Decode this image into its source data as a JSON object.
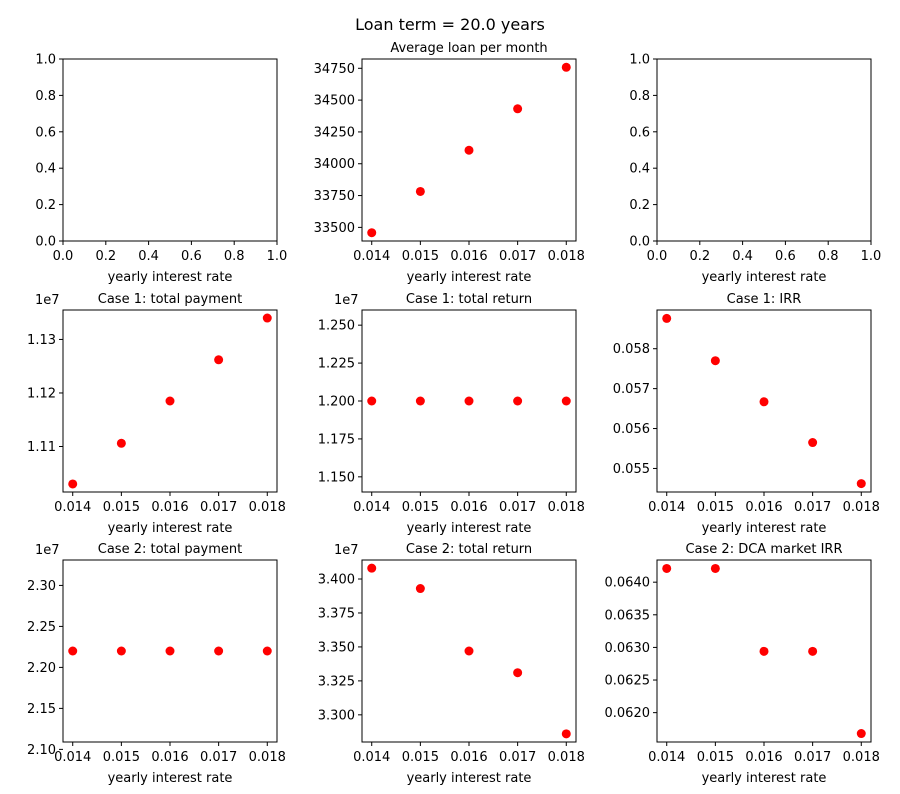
{
  "figure": {
    "suptitle": "Loan term = 20.0 years"
  },
  "marker_color": "#ff0000",
  "chart_data": [
    {
      "type": "scatter",
      "title": "",
      "xlabel": "yearly interest rate",
      "ylabel": "",
      "x": [],
      "y": [],
      "xlim": [
        0,
        1
      ],
      "ylim": [
        0,
        1
      ],
      "xticks": [
        0,
        0.2,
        0.4,
        0.6,
        0.8,
        1.0
      ],
      "xtick_labels": [
        "0.0",
        "0.2",
        "0.4",
        "0.6",
        "0.8",
        "1.0"
      ],
      "yticks": [
        0,
        0.2,
        0.4,
        0.6,
        0.8,
        1.0
      ],
      "ytick_labels": [
        "0.0",
        "0.2",
        "0.4",
        "0.6",
        "0.8",
        "1.0"
      ],
      "offset_text": ""
    },
    {
      "type": "scatter",
      "title": "Average loan per month",
      "xlabel": "yearly interest rate",
      "ylabel": "",
      "x": [
        0.014,
        0.015,
        0.016,
        0.017,
        0.018
      ],
      "y": [
        33458,
        33782,
        34106,
        34432,
        34758
      ],
      "xlim": [
        0.0138,
        0.0182
      ],
      "ylim": [
        33393,
        34823
      ],
      "xticks": [
        0.014,
        0.015,
        0.016,
        0.017,
        0.018
      ],
      "xtick_labels": [
        "0.014",
        "0.015",
        "0.016",
        "0.017",
        "0.018"
      ],
      "yticks": [
        33500,
        33750,
        34000,
        34250,
        34500,
        34750
      ],
      "ytick_labels": [
        "33500",
        "33750",
        "34000",
        "34250",
        "34500",
        "34750"
      ],
      "offset_text": ""
    },
    {
      "type": "scatter",
      "title": "",
      "xlabel": "yearly interest rate",
      "ylabel": "",
      "x": [],
      "y": [],
      "xlim": [
        0,
        1
      ],
      "ylim": [
        0,
        1
      ],
      "xticks": [
        0,
        0.2,
        0.4,
        0.6,
        0.8,
        1.0
      ],
      "xtick_labels": [
        "0.0",
        "0.2",
        "0.4",
        "0.6",
        "0.8",
        "1.0"
      ],
      "yticks": [
        0,
        0.2,
        0.4,
        0.6,
        0.8,
        1.0
      ],
      "ytick_labels": [
        "0.0",
        "0.2",
        "0.4",
        "0.6",
        "0.8",
        "1.0"
      ],
      "offset_text": ""
    },
    {
      "type": "scatter",
      "title": "Case 1: total payment",
      "xlabel": "yearly interest rate",
      "ylabel": "",
      "x": [
        0.014,
        0.015,
        0.016,
        0.017,
        0.018
      ],
      "y": [
        1.103,
        1.1106,
        1.1185,
        1.1262,
        1.134
      ],
      "xlim": [
        0.0138,
        0.0182
      ],
      "ylim": [
        1.1015,
        1.1355
      ],
      "xticks": [
        0.014,
        0.015,
        0.016,
        0.017,
        0.018
      ],
      "xtick_labels": [
        "0.014",
        "0.015",
        "0.016",
        "0.017",
        "0.018"
      ],
      "yticks": [
        1.11,
        1.12,
        1.13
      ],
      "ytick_labels": [
        "1.11",
        "1.12",
        "1.13"
      ],
      "offset_text": "1e7"
    },
    {
      "type": "scatter",
      "title": "Case 1: total return",
      "xlabel": "yearly interest rate",
      "ylabel": "",
      "x": [
        0.014,
        0.015,
        0.016,
        0.017,
        0.018
      ],
      "y": [
        1.2,
        1.2,
        1.2,
        1.2,
        1.2
      ],
      "xlim": [
        0.0138,
        0.0182
      ],
      "ylim": [
        1.14,
        1.26
      ],
      "xticks": [
        0.014,
        0.015,
        0.016,
        0.017,
        0.018
      ],
      "xtick_labels": [
        "0.014",
        "0.015",
        "0.016",
        "0.017",
        "0.018"
      ],
      "yticks": [
        1.15,
        1.175,
        1.2,
        1.225,
        1.25
      ],
      "ytick_labels": [
        "1.150",
        "1.175",
        "1.200",
        "1.225",
        "1.250"
      ],
      "offset_text": "1e7"
    },
    {
      "type": "scatter",
      "title": "Case 1: IRR",
      "xlabel": "yearly interest rate",
      "ylabel": "",
      "x": [
        0.014,
        0.015,
        0.016,
        0.017,
        0.018
      ],
      "y": [
        0.05876,
        0.0577,
        0.05667,
        0.05565,
        0.05462
      ],
      "xlim": [
        0.0138,
        0.0182
      ],
      "ylim": [
        0.05441,
        0.05897
      ],
      "xticks": [
        0.014,
        0.015,
        0.016,
        0.017,
        0.018
      ],
      "xtick_labels": [
        "0.014",
        "0.015",
        "0.016",
        "0.017",
        "0.018"
      ],
      "yticks": [
        0.055,
        0.056,
        0.057,
        0.058
      ],
      "ytick_labels": [
        "0.055",
        "0.056",
        "0.057",
        "0.058"
      ],
      "offset_text": ""
    },
    {
      "type": "scatter",
      "title": "Case 2: total payment",
      "xlabel": "yearly interest rate",
      "ylabel": "",
      "x": [
        0.014,
        0.015,
        0.016,
        0.017,
        0.018
      ],
      "y": [
        2.22,
        2.22,
        2.22,
        2.22,
        2.22
      ],
      "xlim": [
        0.0138,
        0.0182
      ],
      "ylim": [
        2.109,
        2.331
      ],
      "xticks": [
        0.014,
        0.015,
        0.016,
        0.017,
        0.018
      ],
      "xtick_labels": [
        "0.014",
        "0.015",
        "0.016",
        "0.017",
        "0.018"
      ],
      "yticks": [
        2.1,
        2.15,
        2.2,
        2.25,
        2.3
      ],
      "ytick_labels": [
        "2.10",
        "2.15",
        "2.20",
        "2.25",
        "2.30"
      ],
      "offset_text": "1e7"
    },
    {
      "type": "scatter",
      "title": "Case 2: total return",
      "xlabel": "yearly interest rate",
      "ylabel": "",
      "x": [
        0.014,
        0.015,
        0.016,
        0.017,
        0.018
      ],
      "y": [
        3.408,
        3.393,
        3.347,
        3.331,
        3.286
      ],
      "xlim": [
        0.0138,
        0.0182
      ],
      "ylim": [
        3.28,
        3.414
      ],
      "xticks": [
        0.014,
        0.015,
        0.016,
        0.017,
        0.018
      ],
      "xtick_labels": [
        "0.014",
        "0.015",
        "0.016",
        "0.017",
        "0.018"
      ],
      "yticks": [
        3.3,
        3.325,
        3.35,
        3.375,
        3.4
      ],
      "ytick_labels": [
        "3.300",
        "3.325",
        "3.350",
        "3.375",
        "3.400"
      ],
      "offset_text": "1e7"
    },
    {
      "type": "scatter",
      "title": "Case 2: DCA market IRR",
      "xlabel": "yearly interest rate",
      "ylabel": "",
      "x": [
        0.014,
        0.015,
        0.016,
        0.017,
        0.018
      ],
      "y": [
        0.06421,
        0.06421,
        0.06294,
        0.06294,
        0.06168
      ],
      "xlim": [
        0.0138,
        0.0182
      ],
      "ylim": [
        0.06155,
        0.06434
      ],
      "xticks": [
        0.014,
        0.015,
        0.016,
        0.017,
        0.018
      ],
      "xtick_labels": [
        "0.014",
        "0.015",
        "0.016",
        "0.017",
        "0.018"
      ],
      "yticks": [
        0.062,
        0.0625,
        0.063,
        0.0635,
        0.064
      ],
      "ytick_labels": [
        "0.0620",
        "0.0625",
        "0.0630",
        "0.0635",
        "0.0640"
      ],
      "offset_text": ""
    }
  ]
}
